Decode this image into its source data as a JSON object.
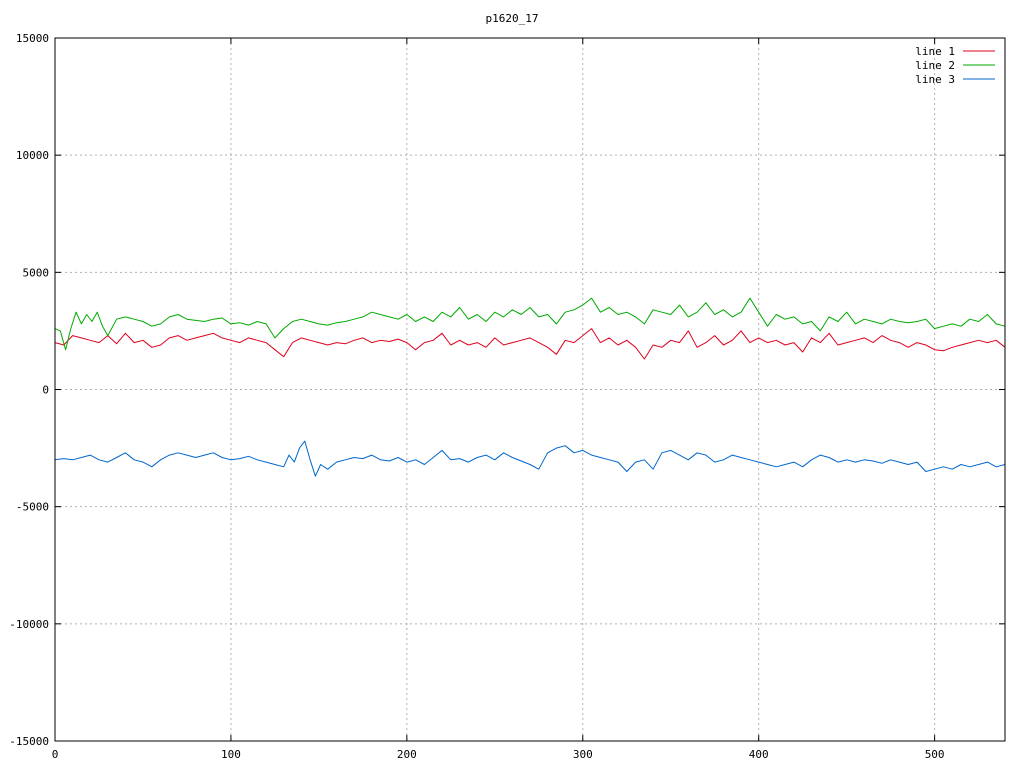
{
  "chart_data": {
    "type": "line",
    "title": "p1620_17",
    "xlabel": "",
    "ylabel": "",
    "xlim": [
      0,
      540
    ],
    "ylim": [
      -15000,
      15000
    ],
    "x_ticks": [
      0,
      100,
      200,
      300,
      400,
      500
    ],
    "y_ticks": [
      -15000,
      -10000,
      -5000,
      0,
      5000,
      10000,
      15000
    ],
    "grid": true,
    "legend_position": "top-right",
    "series": [
      {
        "name": "line 1",
        "color": "#e0001c",
        "x": [
          0,
          5,
          10,
          15,
          20,
          25,
          30,
          35,
          40,
          45,
          50,
          55,
          60,
          65,
          70,
          75,
          80,
          85,
          90,
          95,
          100,
          105,
          110,
          115,
          120,
          125,
          130,
          135,
          140,
          145,
          150,
          155,
          160,
          165,
          170,
          175,
          180,
          185,
          190,
          195,
          200,
          205,
          210,
          215,
          220,
          225,
          230,
          235,
          240,
          245,
          250,
          255,
          260,
          265,
          270,
          275,
          280,
          285,
          290,
          295,
          300,
          305,
          310,
          315,
          320,
          325,
          330,
          335,
          340,
          345,
          350,
          355,
          360,
          365,
          370,
          375,
          380,
          385,
          390,
          395,
          400,
          405,
          410,
          415,
          420,
          425,
          430,
          435,
          440,
          445,
          450,
          455,
          460,
          465,
          470,
          475,
          480,
          485,
          490,
          495,
          500,
          505,
          510,
          515,
          520,
          525,
          530,
          535,
          540
        ],
        "values": [
          2000,
          1900,
          2300,
          2200,
          2100,
          2000,
          2300,
          1950,
          2400,
          2000,
          2100,
          1800,
          1900,
          2200,
          2300,
          2100,
          2200,
          2300,
          2400,
          2200,
          2100,
          2000,
          2200,
          2100,
          2000,
          1700,
          1400,
          2000,
          2200,
          2100,
          2000,
          1900,
          2000,
          1950,
          2100,
          2200,
          2000,
          2100,
          2050,
          2150,
          2000,
          1700,
          2000,
          2100,
          2400,
          1900,
          2100,
          1900,
          2000,
          1800,
          2200,
          1900,
          2000,
          2100,
          2200,
          2000,
          1800,
          1500,
          2100,
          2000,
          2300,
          2600,
          2000,
          2200,
          1900,
          2100,
          1800,
          1300,
          1900,
          1800,
          2100,
          2000,
          2500,
          1800,
          2000,
          2300,
          1900,
          2100,
          2500,
          2000,
          2200,
          2000,
          2100,
          1900,
          2000,
          1600,
          2200,
          2000,
          2400,
          1900,
          2000,
          2100,
          2200,
          2000,
          2300,
          2100,
          2000,
          1800,
          2000,
          1900,
          1700,
          1650,
          1800,
          1900,
          2000,
          2100,
          2000,
          2100,
          1800
        ]
      },
      {
        "name": "line 2",
        "color": "#00aa00",
        "x": [
          0,
          3,
          6,
          9,
          12,
          15,
          18,
          21,
          24,
          27,
          30,
          35,
          40,
          45,
          50,
          55,
          60,
          65,
          70,
          75,
          80,
          85,
          90,
          95,
          100,
          105,
          110,
          115,
          120,
          125,
          130,
          135,
          140,
          145,
          150,
          155,
          160,
          165,
          170,
          175,
          180,
          185,
          190,
          195,
          200,
          205,
          210,
          215,
          220,
          225,
          230,
          235,
          240,
          245,
          250,
          255,
          260,
          265,
          270,
          275,
          280,
          285,
          290,
          295,
          300,
          305,
          310,
          315,
          320,
          325,
          330,
          335,
          340,
          345,
          350,
          355,
          360,
          365,
          370,
          375,
          380,
          385,
          390,
          395,
          400,
          405,
          410,
          415,
          420,
          425,
          430,
          435,
          440,
          445,
          450,
          455,
          460,
          465,
          470,
          475,
          480,
          485,
          490,
          495,
          500,
          505,
          510,
          515,
          520,
          525,
          530,
          535,
          540
        ],
        "values": [
          2600,
          2500,
          1700,
          2600,
          3300,
          2800,
          3200,
          2900,
          3300,
          2700,
          2300,
          3000,
          3100,
          3000,
          2900,
          2700,
          2800,
          3100,
          3200,
          3000,
          2950,
          2900,
          3000,
          3050,
          2800,
          2850,
          2750,
          2900,
          2800,
          2200,
          2600,
          2900,
          3000,
          2900,
          2800,
          2750,
          2850,
          2900,
          3000,
          3100,
          3300,
          3200,
          3100,
          3000,
          3200,
          2900,
          3100,
          2900,
          3300,
          3100,
          3500,
          3000,
          3200,
          2900,
          3300,
          3100,
          3400,
          3200,
          3500,
          3100,
          3200,
          2800,
          3300,
          3400,
          3600,
          3900,
          3300,
          3500,
          3200,
          3300,
          3100,
          2800,
          3400,
          3300,
          3200,
          3600,
          3100,
          3300,
          3700,
          3200,
          3400,
          3100,
          3300,
          3900,
          3300,
          2700,
          3200,
          3000,
          3100,
          2800,
          2900,
          2500,
          3100,
          2900,
          3300,
          2800,
          3000,
          2900,
          2800,
          3000,
          2900,
          2850,
          2900,
          3000,
          2600,
          2700,
          2800,
          2700,
          3000,
          2900,
          3200,
          2800,
          2700
        ]
      },
      {
        "name": "line 3",
        "color": "#0066cc",
        "x": [
          0,
          5,
          10,
          15,
          20,
          25,
          30,
          35,
          40,
          45,
          50,
          55,
          60,
          65,
          70,
          75,
          80,
          85,
          90,
          95,
          100,
          105,
          110,
          115,
          120,
          125,
          130,
          133,
          136,
          139,
          142,
          145,
          148,
          151,
          155,
          160,
          165,
          170,
          175,
          180,
          185,
          190,
          195,
          200,
          205,
          210,
          215,
          220,
          225,
          230,
          235,
          240,
          245,
          250,
          255,
          260,
          265,
          270,
          275,
          280,
          285,
          290,
          295,
          300,
          305,
          310,
          315,
          320,
          325,
          330,
          335,
          340,
          345,
          350,
          355,
          360,
          365,
          370,
          375,
          380,
          385,
          390,
          395,
          400,
          405,
          410,
          415,
          420,
          425,
          430,
          435,
          440,
          445,
          450,
          455,
          460,
          465,
          470,
          475,
          480,
          485,
          490,
          495,
          500,
          505,
          510,
          515,
          520,
          525,
          530,
          535,
          540
        ],
        "values": [
          -3000,
          -2950,
          -3000,
          -2900,
          -2800,
          -3000,
          -3100,
          -2900,
          -2700,
          -3000,
          -3100,
          -3300,
          -3000,
          -2800,
          -2700,
          -2800,
          -2900,
          -2800,
          -2700,
          -2900,
          -3000,
          -2950,
          -2850,
          -3000,
          -3100,
          -3200,
          -3300,
          -2800,
          -3100,
          -2500,
          -2200,
          -3000,
          -3700,
          -3200,
          -3400,
          -3100,
          -3000,
          -2900,
          -2950,
          -2800,
          -3000,
          -3050,
          -2900,
          -3100,
          -3000,
          -3200,
          -2900,
          -2600,
          -3000,
          -2950,
          -3100,
          -2900,
          -2800,
          -3000,
          -2700,
          -2900,
          -3050,
          -3200,
          -3400,
          -2700,
          -2500,
          -2400,
          -2700,
          -2600,
          -2800,
          -2900,
          -3000,
          -3100,
          -3500,
          -3100,
          -3000,
          -3400,
          -2700,
          -2600,
          -2800,
          -3000,
          -2700,
          -2800,
          -3100,
          -3000,
          -2800,
          -2900,
          -3000,
          -3100,
          -3200,
          -3300,
          -3200,
          -3100,
          -3300,
          -3000,
          -2800,
          -2900,
          -3100,
          -3000,
          -3100,
          -3000,
          -3050,
          -3150,
          -3000,
          -3100,
          -3200,
          -3100,
          -3500,
          -3400,
          -3300,
          -3400,
          -3200,
          -3300,
          -3200,
          -3100,
          -3300,
          -3200
        ]
      }
    ]
  }
}
